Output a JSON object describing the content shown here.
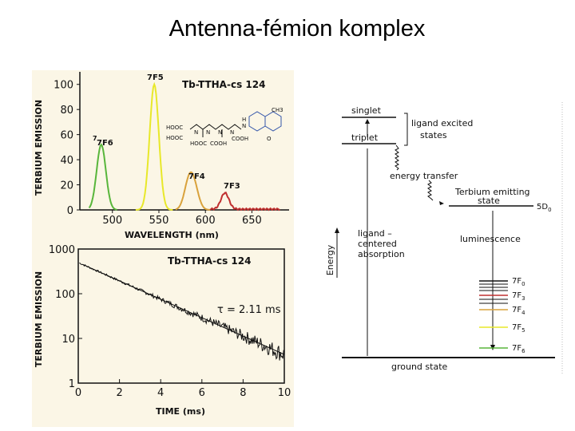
{
  "slide": {
    "title": "Antenna-fémion komplex"
  },
  "chart_data": [
    {
      "type": "line",
      "title": "Tb-TTHA-cs 124",
      "xlabel": "WAVELENGTH (nm)",
      "ylabel": "TERBIUM EMISSION",
      "xlim": [
        465,
        690
      ],
      "ylim": [
        0,
        110
      ],
      "xticks": [
        "500",
        "550",
        "600",
        "650"
      ],
      "yticks": [
        "0",
        "20",
        "40",
        "60",
        "80",
        "100"
      ],
      "structure_labels": [
        "HOOC",
        "HOOC",
        "N",
        "N",
        "N",
        "N",
        "HOOC",
        "COOH",
        "COOH",
        "H",
        "N",
        "CH3",
        "O"
      ],
      "series": [
        {
          "name": "7F6",
          "color": "#58b63b",
          "peaks": [
            [
              488,
              52
            ]
          ],
          "range": [
            475,
            505
          ]
        },
        {
          "name": "7F5",
          "color": "#e8e82a",
          "peaks": [
            [
              545,
              100
            ]
          ],
          "range": [
            525,
            565
          ]
        },
        {
          "name": "7F4",
          "color": "#d9a23c",
          "peaks": [
            [
              582,
              20
            ],
            [
              588,
              16
            ]
          ],
          "range": [
            568,
            605
          ]
        },
        {
          "name": "7F3",
          "color": "#c03030",
          "peaks": [
            [
              621,
              13
            ]
          ],
          "range": [
            605,
            680
          ]
        }
      ]
    },
    {
      "type": "line",
      "title": "Tb-TTHA-cs 124",
      "xlabel": "TIME (ms)",
      "ylabel": "TERBIUM EMISSION",
      "yscale": "log",
      "xlim": [
        0,
        10
      ],
      "ylim": [
        1,
        1000
      ],
      "xticks": [
        "0",
        "2",
        "4",
        "6",
        "8",
        "10"
      ],
      "yticks": [
        "1",
        "10",
        "100",
        "1000"
      ],
      "annotation": "τ = 2.11 ms",
      "decay": {
        "start_value": 500,
        "tau_ms": 2.11
      }
    }
  ],
  "diagram": {
    "labels": {
      "singlet": "singlet",
      "triplet": "triplet",
      "ligand_excited": [
        "ligand excited",
        "states"
      ],
      "energy_transfer": "energy transfer",
      "tb_emitting": [
        "Terbium emitting",
        "state"
      ],
      "d_level": "5D",
      "d_level_sub": "0",
      "ligand_abs": [
        "ligand –",
        "centered",
        "absorption"
      ],
      "energy": "Energy",
      "luminescence": "luminescence",
      "ground": "ground state"
    },
    "levels": [
      {
        "label": "7F",
        "sub": "0",
        "color": "#111111"
      },
      {
        "label": "7F",
        "sub": "3",
        "color": "#c03030"
      },
      {
        "label": "7F",
        "sub": "4",
        "color": "#d9a23c"
      },
      {
        "label": "7F",
        "sub": "5",
        "color": "#e8e82a"
      },
      {
        "label": "7F",
        "sub": "6",
        "color": "#58b63b"
      }
    ]
  }
}
